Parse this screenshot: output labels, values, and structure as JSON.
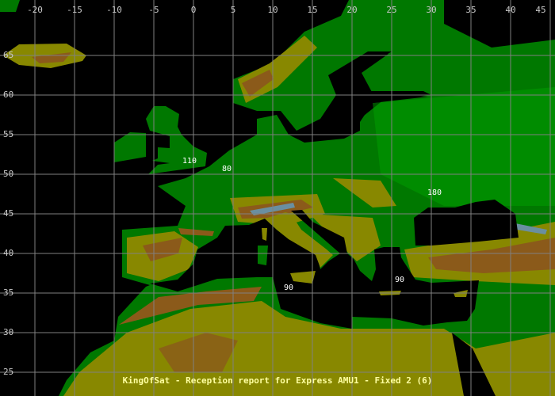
{
  "title": "KingOfSat - Reception report for Express AMU1 - Fixed 2 (6)",
  "map": {
    "longitude_labels": [
      "-20",
      "-15",
      "-10",
      "-5",
      "0",
      "5",
      "10",
      "15",
      "20",
      "25",
      "30",
      "35",
      "40",
      "45"
    ],
    "longitude_values": [
      -20,
      -15,
      -10,
      -5,
      0,
      5,
      10,
      15,
      20,
      25,
      30,
      35,
      40,
      45
    ],
    "latitude_labels": [
      "65",
      "60",
      "55",
      "50",
      "45",
      "40",
      "35",
      "30",
      "25"
    ],
    "latitude_values": [
      65,
      60,
      55,
      50,
      45,
      40,
      35,
      30,
      25
    ],
    "grid": true,
    "colors": {
      "sea": "#000000",
      "lowland": "#007800",
      "plain": "#00a000",
      "hills": "#888800",
      "mountains": "#8b5a1a",
      "high": "#6a8fa0",
      "grid": "#808080",
      "title": "#ffffa0"
    },
    "contour_labels": [
      {
        "text": "110",
        "lon": -0.5,
        "lat": 51.8
      },
      {
        "text": "80",
        "lon": 4.2,
        "lat": 50.8
      },
      {
        "text": "180",
        "lon": 30.4,
        "lat": 47.8
      },
      {
        "text": "90",
        "lon": 12,
        "lat": 35.8
      },
      {
        "text": "90",
        "lon": 26,
        "lat": 36.8
      }
    ]
  }
}
